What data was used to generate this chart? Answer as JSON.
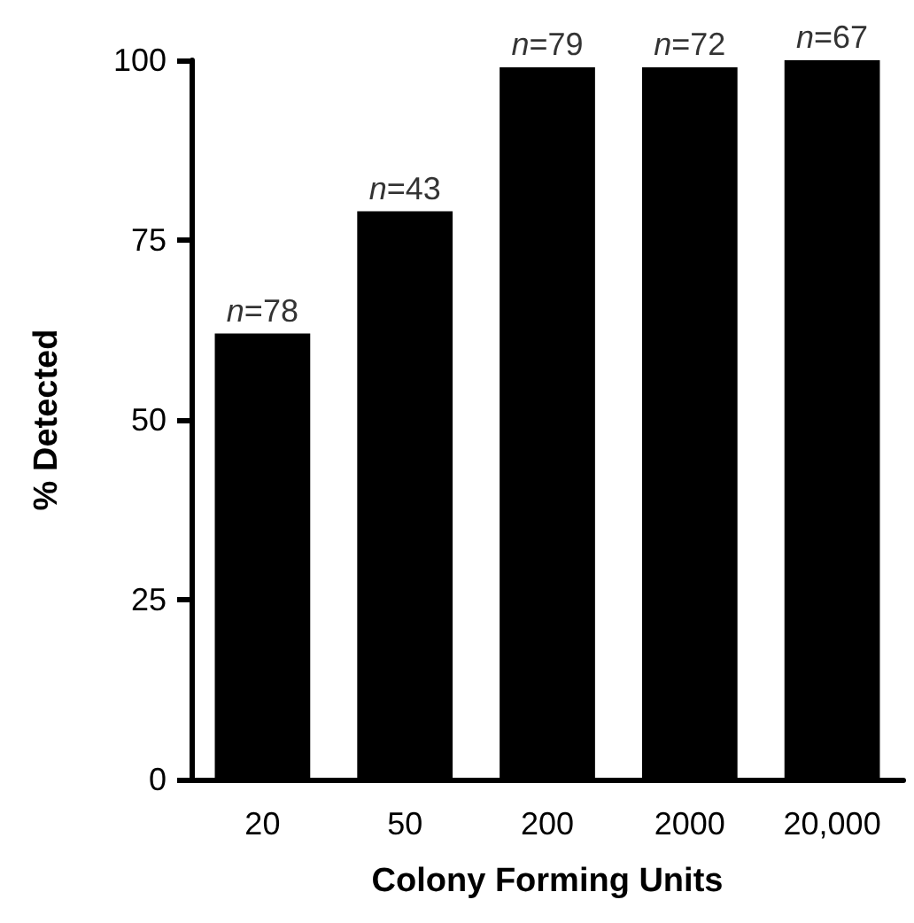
{
  "chart_data": {
    "type": "bar",
    "xlabel": "Colony Forming Units",
    "ylabel": "% Detected",
    "categories": [
      "20",
      "50",
      "200",
      "2000",
      "20,000"
    ],
    "values": [
      62,
      79,
      99,
      99,
      100
    ],
    "color": "#000000",
    "ylim": [
      0,
      100
    ],
    "yticks": [
      0,
      25,
      50,
      75,
      100
    ],
    "grid": false,
    "annotations": [
      {
        "text": "n=78",
        "x": "20",
        "y": 62
      },
      {
        "text": "n=43",
        "x": "50",
        "y": 79
      },
      {
        "text": "n=79",
        "x": "200",
        "y": 99
      },
      {
        "text": "n=72",
        "x": "2000",
        "y": 99
      },
      {
        "text": "n=67",
        "x": "20,000",
        "y": 100
      }
    ]
  }
}
